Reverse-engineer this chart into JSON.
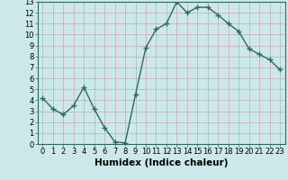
{
  "x": [
    0,
    1,
    2,
    3,
    4,
    5,
    6,
    7,
    8,
    9,
    10,
    11,
    12,
    13,
    14,
    15,
    16,
    17,
    18,
    19,
    20,
    21,
    22,
    23
  ],
  "y": [
    4.2,
    3.2,
    2.7,
    3.5,
    5.2,
    3.2,
    1.5,
    0.2,
    0.1,
    4.5,
    8.8,
    10.5,
    11.0,
    13.0,
    12.0,
    12.5,
    12.5,
    11.8,
    11.0,
    10.3,
    8.7,
    8.2,
    7.7,
    6.8
  ],
  "line_color": "#2a6b63",
  "marker": "+",
  "marker_size": 4,
  "bg_color": "#cce8e8",
  "grid_color": "#c8a8b8",
  "xlabel": "Humidex (Indice chaleur)",
  "ylim": [
    0,
    13
  ],
  "xlim": [
    -0.5,
    23.5
  ],
  "yticks": [
    0,
    1,
    2,
    3,
    4,
    5,
    6,
    7,
    8,
    9,
    10,
    11,
    12,
    13
  ],
  "xticks": [
    0,
    1,
    2,
    3,
    4,
    5,
    6,
    7,
    8,
    9,
    10,
    11,
    12,
    13,
    14,
    15,
    16,
    17,
    18,
    19,
    20,
    21,
    22,
    23
  ],
  "tick_fontsize": 6,
  "xlabel_fontsize": 7.5,
  "linewidth": 1.0
}
